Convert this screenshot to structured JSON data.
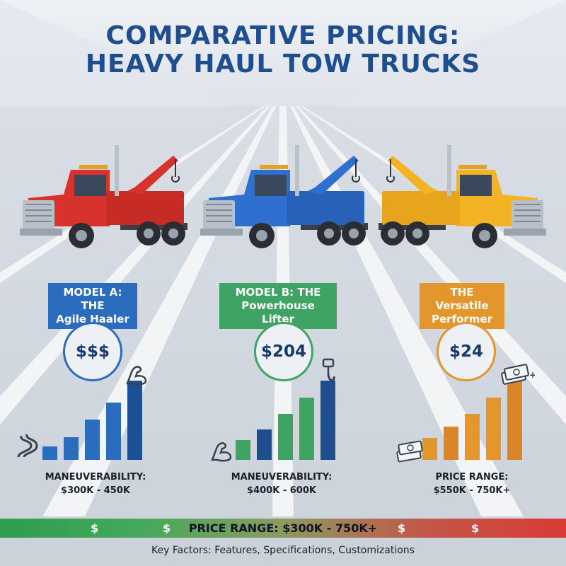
{
  "title": {
    "line1": "COMPARATIVE PRICING:",
    "line2": "HEAVY HAUL TOW TRUCKS"
  },
  "colors": {
    "title": "#1f4e8f",
    "model_a": "#2b6cbf",
    "model_b": "#3fa363",
    "model_c": "#e3962b",
    "truck_red": "#d7322c",
    "truck_blue": "#2f6fcf",
    "truck_yellow": "#f2b324"
  },
  "models": [
    {
      "label_line1": "MODEL A: THE",
      "label_line2": "Agile Haaler",
      "price": "$$$",
      "caption_line1": "MANEUVERABILITY:",
      "caption_line2": "$300K - 450K",
      "truck_color": "red",
      "icons": [
        "winding-road-icon",
        "flexed-arm-icon"
      ],
      "bar_levels": [
        0.17,
        0.29,
        0.51,
        0.72,
        1.0
      ]
    },
    {
      "label_line1": "MODEL B: THE",
      "label_line2": "Powerhouse Lifter",
      "price": "$204",
      "caption_line1": "MANEUVERABILITY:",
      "caption_line2": "$400K - 600K",
      "truck_color": "blue",
      "icons": [
        "flexed-arm-icon",
        "tow-hook-icon"
      ],
      "bar_levels": [
        0.25,
        0.38,
        0.58,
        0.79,
        1.0
      ]
    },
    {
      "label_line1": "THE Versatile",
      "label_line2": "Performer",
      "price": "$24",
      "caption_line1": "PRICE RANGE:",
      "caption_line2": "$550K - 750K+",
      "truck_color": "yellow",
      "icons": [
        "cash-stack-icon",
        "cash-stack-icon"
      ],
      "bar_levels": [
        0.28,
        0.42,
        0.58,
        0.79,
        1.0
      ]
    }
  ],
  "bottom_bar": {
    "text": "PRICE RANGE: $300K - 750K+",
    "dollar_symbol": "$"
  },
  "footer": "Key Factors: Features, Specifications, Customizations"
}
